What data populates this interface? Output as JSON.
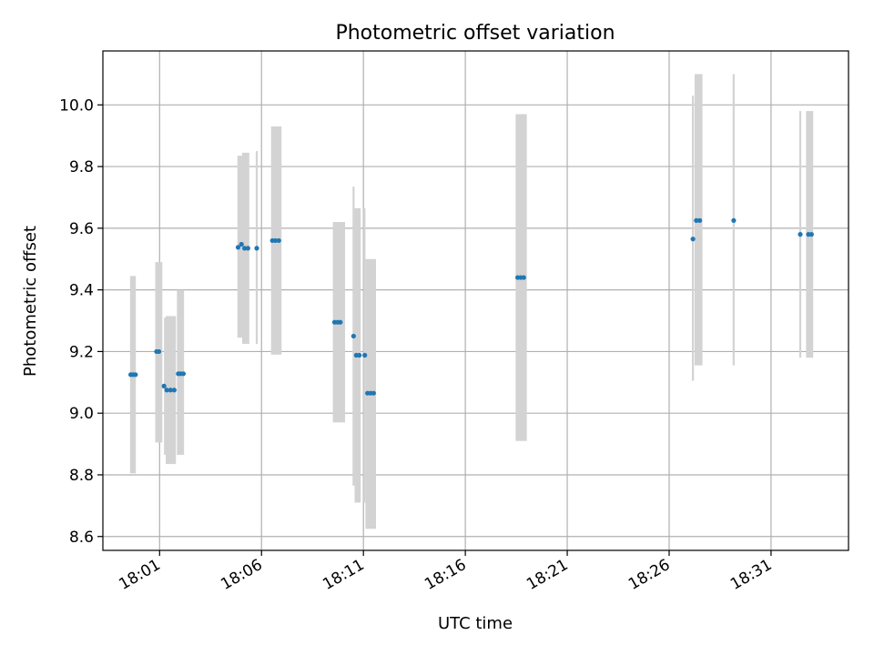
{
  "chart_data": {
    "type": "scatter",
    "title": "Photometric offset variation",
    "xlabel": "UTC time",
    "ylabel": "Photometric offset",
    "xlim": [
      "17:58:13",
      "18:34:48"
    ],
    "ylim": [
      8.555,
      10.175
    ],
    "xticks": [
      "18:01",
      "18:06",
      "18:11",
      "18:16",
      "18:21",
      "18:26",
      "18:31"
    ],
    "yticks": [
      "8.6",
      "8.8",
      "9.0",
      "9.2",
      "9.4",
      "9.6",
      "9.8",
      "10.0"
    ],
    "grid": true,
    "colors": {
      "points": "#1f77b4",
      "error_bars": "#d3d3d3",
      "grid": "#b0b0b0"
    },
    "error_bars": [
      {
        "x_start": "17:59:33",
        "x_end": "17:59:50",
        "y_low": 8.805,
        "y_high": 9.445
      },
      {
        "x_start": "18:00:47",
        "x_end": "18:01:08",
        "y_low": 8.905,
        "y_high": 9.49
      },
      {
        "x_start": "18:01:13",
        "x_end": "18:01:18",
        "y_low": 8.865,
        "y_high": 9.31
      },
      {
        "x_start": "18:01:18",
        "x_end": "18:01:48",
        "y_low": 8.835,
        "y_high": 9.315
      },
      {
        "x_start": "18:01:51",
        "x_end": "18:02:12",
        "y_low": 8.865,
        "y_high": 9.4
      },
      {
        "x_start": "18:04:49",
        "x_end": "18:05:03",
        "y_low": 9.245,
        "y_high": 9.835
      },
      {
        "x_start": "18:05:03",
        "x_end": "18:05:24",
        "y_low": 9.225,
        "y_high": 9.845
      },
      {
        "x_start": "18:05:43",
        "x_end": "18:05:49",
        "y_low": 9.225,
        "y_high": 9.85
      },
      {
        "x_start": "18:06:28",
        "x_end": "18:06:59",
        "y_low": 9.19,
        "y_high": 9.93
      },
      {
        "x_start": "18:09:30",
        "x_end": "18:10:06",
        "y_low": 8.97,
        "y_high": 9.62
      },
      {
        "x_start": "18:10:28",
        "x_end": "18:10:34",
        "y_low": 8.765,
        "y_high": 9.735
      },
      {
        "x_start": "18:10:34",
        "x_end": "18:10:52",
        "y_low": 8.71,
        "y_high": 9.665
      },
      {
        "x_start": "18:11:00",
        "x_end": "18:11:06",
        "y_low": 8.71,
        "y_high": 9.665
      },
      {
        "x_start": "18:11:06",
        "x_end": "18:11:37",
        "y_low": 8.625,
        "y_high": 9.5
      },
      {
        "x_start": "18:18:28",
        "x_end": "18:19:01",
        "y_low": 8.91,
        "y_high": 9.97
      },
      {
        "x_start": "18:27:07",
        "x_end": "18:27:13",
        "y_low": 9.105,
        "y_high": 10.03
      },
      {
        "x_start": "18:27:15",
        "x_end": "18:27:38",
        "y_low": 9.155,
        "y_high": 10.1
      },
      {
        "x_start": "18:29:07",
        "x_end": "18:29:13",
        "y_low": 9.155,
        "y_high": 10.1
      },
      {
        "x_start": "18:32:23",
        "x_end": "18:32:29",
        "y_low": 9.18,
        "y_high": 9.98
      },
      {
        "x_start": "18:32:43",
        "x_end": "18:33:04",
        "y_low": 9.18,
        "y_high": 9.98
      }
    ],
    "points": [
      {
        "x": "17:59:35",
        "y": 9.125
      },
      {
        "x": "17:59:42",
        "y": 9.125
      },
      {
        "x": "17:59:49",
        "y": 9.125
      },
      {
        "x": "18:00:51",
        "y": 9.2
      },
      {
        "x": "18:00:58",
        "y": 9.2
      },
      {
        "x": "18:01:13",
        "y": 9.088
      },
      {
        "x": "18:01:21",
        "y": 9.075
      },
      {
        "x": "18:01:32",
        "y": 9.075
      },
      {
        "x": "18:01:43",
        "y": 9.075
      },
      {
        "x": "18:01:55",
        "y": 9.128
      },
      {
        "x": "18:02:02",
        "y": 9.128
      },
      {
        "x": "18:02:10",
        "y": 9.128
      },
      {
        "x": "18:04:51",
        "y": 9.538
      },
      {
        "x": "18:05:01",
        "y": 9.548
      },
      {
        "x": "18:05:10",
        "y": 9.535
      },
      {
        "x": "18:05:20",
        "y": 9.535
      },
      {
        "x": "18:05:46",
        "y": 9.535
      },
      {
        "x": "18:06:32",
        "y": 9.56
      },
      {
        "x": "18:06:41",
        "y": 9.56
      },
      {
        "x": "18:06:51",
        "y": 9.56
      },
      {
        "x": "18:09:35",
        "y": 9.295
      },
      {
        "x": "18:09:44",
        "y": 9.295
      },
      {
        "x": "18:09:52",
        "y": 9.295
      },
      {
        "x": "18:10:31",
        "y": 9.25
      },
      {
        "x": "18:10:39",
        "y": 9.188
      },
      {
        "x": "18:10:48",
        "y": 9.188
      },
      {
        "x": "18:11:04",
        "y": 9.188
      },
      {
        "x": "18:11:12",
        "y": 9.065
      },
      {
        "x": "18:11:21",
        "y": 9.065
      },
      {
        "x": "18:11:30",
        "y": 9.065
      },
      {
        "x": "18:18:34",
        "y": 9.44
      },
      {
        "x": "18:18:43",
        "y": 9.44
      },
      {
        "x": "18:18:52",
        "y": 9.44
      },
      {
        "x": "18:27:10",
        "y": 9.565
      },
      {
        "x": "18:27:20",
        "y": 9.625
      },
      {
        "x": "18:27:30",
        "y": 9.625
      },
      {
        "x": "18:29:10",
        "y": 9.625
      },
      {
        "x": "18:32:26",
        "y": 9.58
      },
      {
        "x": "18:32:50",
        "y": 9.58
      },
      {
        "x": "18:32:59",
        "y": 9.58
      }
    ]
  }
}
